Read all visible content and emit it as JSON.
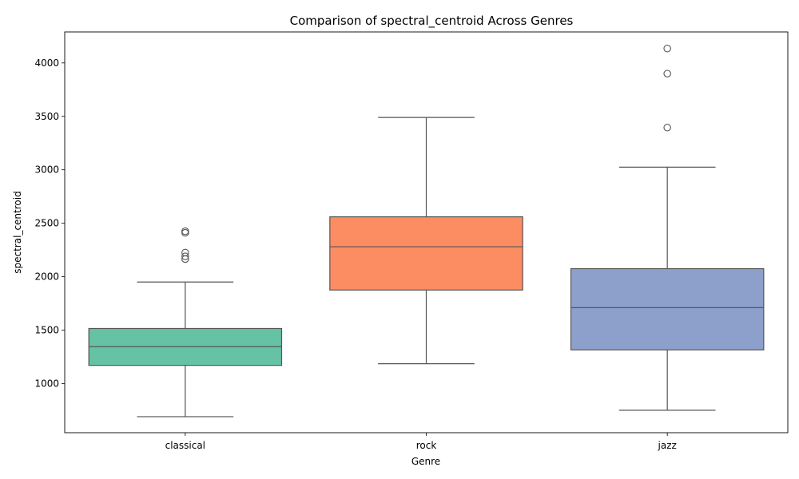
{
  "chart_data": {
    "type": "box",
    "title": "Comparison of spectral_centroid Across Genres",
    "xlabel": "Genre",
    "ylabel": "spectral_centroid",
    "categories": [
      "classical",
      "rock",
      "jazz"
    ],
    "ylim": [
      540,
      4290
    ],
    "yticks": [
      1000,
      1500,
      2000,
      2500,
      3000,
      3500,
      4000
    ],
    "grid": false,
    "boxes": [
      {
        "category": "classical",
        "whisker_low": 690,
        "q1": 1170,
        "median": 1345,
        "q3": 1515,
        "whisker_high": 1950,
        "outliers": [
          2165,
          2190,
          2225,
          2410,
          2425
        ],
        "color": "#66c2a5"
      },
      {
        "category": "rock",
        "whisker_low": 1185,
        "q1": 1875,
        "median": 2280,
        "q3": 2560,
        "whisker_high": 3490,
        "outliers": [],
        "color": "#fc8d62"
      },
      {
        "category": "jazz",
        "whisker_low": 750,
        "q1": 1315,
        "median": 1710,
        "q3": 2075,
        "whisker_high": 3025,
        "outliers": [
          3395,
          3900,
          4135
        ],
        "color": "#8da0cb"
      }
    ]
  }
}
